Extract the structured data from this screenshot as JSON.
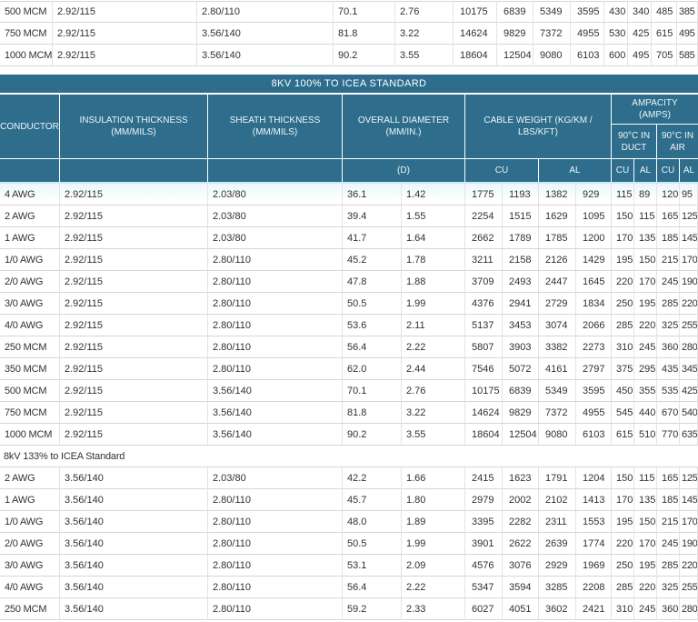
{
  "colors": {
    "teal_header": "#2e6e8c",
    "header_text": "#ffffff",
    "body_text": "#313131",
    "row_border": "#d6d6d6",
    "column_border": "#e3e3e3",
    "cyan_strip": "#c9edf4"
  },
  "top_table": {
    "rows": [
      [
        "500 MCM",
        "2.92/115",
        "2.80/110",
        "70.1",
        "2.76",
        "10175",
        "6839",
        "5349",
        "3595",
        "430",
        "340",
        "485",
        "385"
      ],
      [
        "750 MCM",
        "2.92/115",
        "3.56/140",
        "81.8",
        "3.22",
        "14624",
        "9829",
        "7372",
        "4955",
        "530",
        "425",
        "615",
        "495"
      ],
      [
        "1000 MCM",
        "2.92/115",
        "3.56/140",
        "90.2",
        "3.55",
        "18604",
        "12504",
        "9080",
        "6103",
        "600",
        "495",
        "705",
        "585"
      ]
    ]
  },
  "section_100": {
    "title": "8KV 100% TO ICEA STANDARD"
  },
  "header": {
    "conductor": "CONDUCTOR",
    "insulation": "INSULATION THICKNESS (MM/MILS)",
    "sheath": "SHEATH THICKNESS (MM/MILS)",
    "diameter": "OVERALL DIAMETER (MM/IN.)",
    "weight": "CABLE WEIGHT (KG/KM / LBS/KFT)",
    "ampacity": "AMPACITY (AMPS)",
    "duct": "90°C IN DUCT",
    "air": "90°C IN AIR",
    "d": "(D)",
    "cu": "CU",
    "al": "AL"
  },
  "table_100": {
    "rows": [
      [
        "4 AWG",
        "2.92/115",
        "2.03/80",
        "36.1",
        "1.42",
        "1775",
        "1193",
        "1382",
        "929",
        "115",
        "89",
        "120",
        "95"
      ],
      [
        "2 AWG",
        "2.92/115",
        "2.03/80",
        "39.4",
        "1.55",
        "2254",
        "1515",
        "1629",
        "1095",
        "150",
        "115",
        "165",
        "125"
      ],
      [
        "1 AWG",
        "2.92/115",
        "2.03/80",
        "41.7",
        "1.64",
        "2662",
        "1789",
        "1785",
        "1200",
        "170",
        "135",
        "185",
        "145"
      ],
      [
        "1/0 AWG",
        "2.92/115",
        "2.80/110",
        "45.2",
        "1.78",
        "3211",
        "2158",
        "2126",
        "1429",
        "195",
        "150",
        "215",
        "170"
      ],
      [
        "2/0 AWG",
        "2.92/115",
        "2.80/110",
        "47.8",
        "1.88",
        "3709",
        "2493",
        "2447",
        "1645",
        "220",
        "170",
        "245",
        "190"
      ],
      [
        "3/0 AWG",
        "2.92/115",
        "2.80/110",
        "50.5",
        "1.99",
        "4376",
        "2941",
        "2729",
        "1834",
        "250",
        "195",
        "285",
        "220"
      ],
      [
        "4/0 AWG",
        "2.92/115",
        "2.80/110",
        "53.6",
        "2.11",
        "5137",
        "3453",
        "3074",
        "2066",
        "285",
        "220",
        "325",
        "255"
      ],
      [
        "250 MCM",
        "2.92/115",
        "2.80/110",
        "56.4",
        "2.22",
        "5807",
        "3903",
        "3382",
        "2273",
        "310",
        "245",
        "360",
        "280"
      ],
      [
        "350 MCM",
        "2.92/115",
        "2.80/110",
        "62.0",
        "2.44",
        "7546",
        "5072",
        "4161",
        "2797",
        "375",
        "295",
        "435",
        "345"
      ],
      [
        "500 MCM",
        "2.92/115",
        "3.56/140",
        "70.1",
        "2.76",
        "10175",
        "6839",
        "5349",
        "3595",
        "450",
        "355",
        "535",
        "425"
      ],
      [
        "750 MCM",
        "2.92/115",
        "3.56/140",
        "81.8",
        "3.22",
        "14624",
        "9829",
        "7372",
        "4955",
        "545",
        "440",
        "670",
        "540"
      ],
      [
        "1000 MCM",
        "2.92/115",
        "3.56/140",
        "90.2",
        "3.55",
        "18604",
        "12504",
        "9080",
        "6103",
        "615",
        "510",
        "770",
        "635"
      ]
    ]
  },
  "section_133": {
    "title": "8kV 133% to ICEA Standard"
  },
  "table_133": {
    "rows": [
      [
        "2 AWG",
        "3.56/140",
        "2.03/80",
        "42.2",
        "1.66",
        "2415",
        "1623",
        "1791",
        "1204",
        "150",
        "115",
        "165",
        "125"
      ],
      [
        "1 AWG",
        "3.56/140",
        "2.80/110",
        "45.7",
        "1.80",
        "2979",
        "2002",
        "2102",
        "1413",
        "170",
        "135",
        "185",
        "145"
      ],
      [
        "1/0 AWG",
        "3.56/140",
        "2.80/110",
        "48.0",
        "1.89",
        "3395",
        "2282",
        "2311",
        "1553",
        "195",
        "150",
        "215",
        "170"
      ],
      [
        "2/0 AWG",
        "3.56/140",
        "2.80/110",
        "50.5",
        "1.99",
        "3901",
        "2622",
        "2639",
        "1774",
        "220",
        "170",
        "245",
        "190"
      ],
      [
        "3/0 AWG",
        "3.56/140",
        "2.80/110",
        "53.1",
        "2.09",
        "4576",
        "3076",
        "2929",
        "1969",
        "250",
        "195",
        "285",
        "220"
      ],
      [
        "4/0 AWG",
        "3.56/140",
        "2.80/110",
        "56.4",
        "2.22",
        "5347",
        "3594",
        "3285",
        "2208",
        "285",
        "220",
        "325",
        "255"
      ],
      [
        "250 MCM",
        "3.56/140",
        "2.80/110",
        "59.2",
        "2.33",
        "6027",
        "4051",
        "3602",
        "2421",
        "310",
        "245",
        "360",
        "280"
      ]
    ]
  },
  "column_keys": [
    "conductor",
    "insulation",
    "sheath",
    "dia-mm",
    "dia-in",
    "wt-cu-kg",
    "wt-cu-lb",
    "wt-al-kg",
    "wt-al-lb",
    "amp-duct-cu",
    "amp-duct-al",
    "amp-air-cu",
    "amp-air-al"
  ]
}
